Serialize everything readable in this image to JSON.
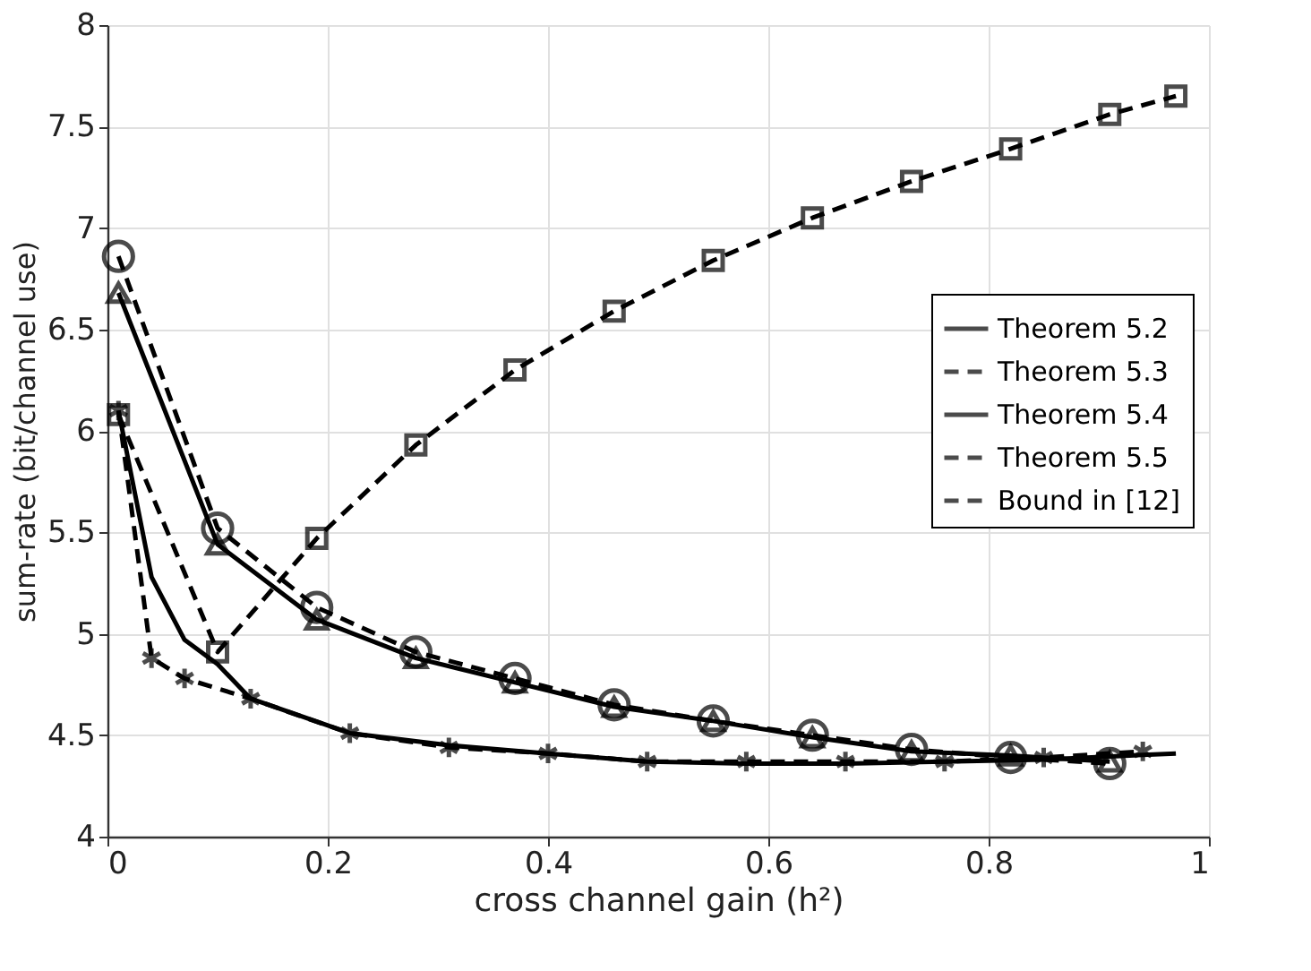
{
  "chart_data": {
    "type": "line",
    "xlabel": "cross channel gain (h²)",
    "ylabel": "sum-rate (bit/channel use)",
    "xlim": [
      0,
      1
    ],
    "ylim": [
      4,
      8
    ],
    "xticks": [
      0,
      0.2,
      0.4,
      0.6,
      0.8,
      1
    ],
    "yticks": [
      4,
      4.5,
      5,
      5.5,
      6,
      6.5,
      7,
      7.5,
      8
    ],
    "grid": true,
    "legend": "right",
    "series": [
      {
        "name": "Theorem 5.2",
        "color": "#000000",
        "line_style": "solid",
        "marker": "none",
        "x": [
          0.01,
          0.04,
          0.07,
          0.1,
          0.13,
          0.22,
          0.31,
          0.4,
          0.49,
          0.58,
          0.67,
          0.76,
          0.85,
          0.97
        ],
        "values": [
          6.1,
          5.28,
          4.97,
          4.85,
          4.68,
          4.51,
          4.45,
          4.41,
          4.37,
          4.36,
          4.36,
          4.37,
          4.38,
          4.41
        ]
      },
      {
        "name": "Theorem 5.3",
        "color": "#000000",
        "line_style": "dashed",
        "marker": "cross",
        "x": [
          0.01,
          0.04,
          0.07,
          0.13,
          0.22,
          0.31,
          0.4,
          0.49,
          0.58,
          0.67,
          0.76,
          0.85,
          0.94
        ],
        "values": [
          6.1,
          4.88,
          4.78,
          4.68,
          4.51,
          4.44,
          4.41,
          4.37,
          4.37,
          4.37,
          4.37,
          4.39,
          4.42
        ]
      },
      {
        "name": "Theorem 5.4",
        "color": "#000000",
        "line_style": "solid",
        "marker": "triangle",
        "x": [
          0.01,
          0.1,
          0.19,
          0.28,
          0.37,
          0.46,
          0.55,
          0.64,
          0.73,
          0.82,
          0.91
        ],
        "values": [
          6.68,
          5.44,
          5.07,
          4.88,
          4.76,
          4.64,
          4.57,
          4.49,
          4.42,
          4.4,
          4.37
        ]
      },
      {
        "name": "Theorem 5.5",
        "color": "#000000",
        "line_style": "dashed",
        "marker": "circle",
        "x": [
          0.01,
          0.1,
          0.19,
          0.28,
          0.37,
          0.46,
          0.55,
          0.64,
          0.73,
          0.82,
          0.91
        ],
        "values": [
          6.86,
          5.52,
          5.13,
          4.91,
          4.78,
          4.65,
          4.57,
          4.5,
          4.43,
          4.39,
          4.36
        ]
      },
      {
        "name": "Bound in [12]",
        "color": "#000000",
        "line_style": "dashed",
        "marker": "square",
        "x": [
          0.01,
          0.1,
          0.19,
          0.28,
          0.37,
          0.46,
          0.55,
          0.64,
          0.73,
          0.82,
          0.91,
          0.97
        ],
        "values": [
          6.08,
          4.91,
          5.47,
          5.93,
          6.3,
          6.59,
          6.84,
          7.05,
          7.23,
          7.39,
          7.56,
          7.65
        ]
      }
    ]
  }
}
